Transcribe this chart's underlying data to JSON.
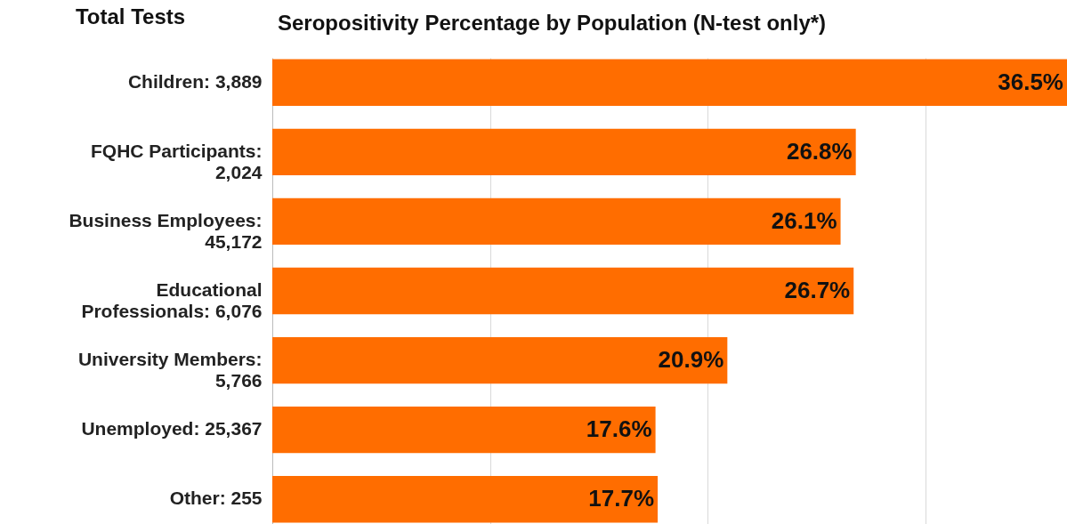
{
  "chart_data": {
    "type": "bar",
    "orientation": "horizontal",
    "title": "Seropositivity Percentage by Population (N-test only*)",
    "ylabel": "Total Tests",
    "categories": [
      "Children: 3,889",
      "FQHC Participants:\n2,024",
      "Business Employees:\n45,172",
      "Educational\nProfessionals: 6,076",
      "University Members:\n5,766",
      "Unemployed: 25,367",
      "Other: 255"
    ],
    "values": [
      36.5,
      26.8,
      26.1,
      26.7,
      20.9,
      17.6,
      17.7
    ],
    "value_labels": [
      "36.5%",
      "26.8%",
      "26.1%",
      "26.7%",
      "20.9%",
      "17.6%",
      "17.7%"
    ],
    "color": "#ff6d00",
    "xlim": [
      0,
      36.5
    ],
    "xticks": [
      {
        "value": 10,
        "label": null
      },
      {
        "value": 20,
        "label": null
      },
      {
        "value": 30,
        "label": null
      }
    ],
    "tick_labels": "y",
    "grid": "x"
  }
}
